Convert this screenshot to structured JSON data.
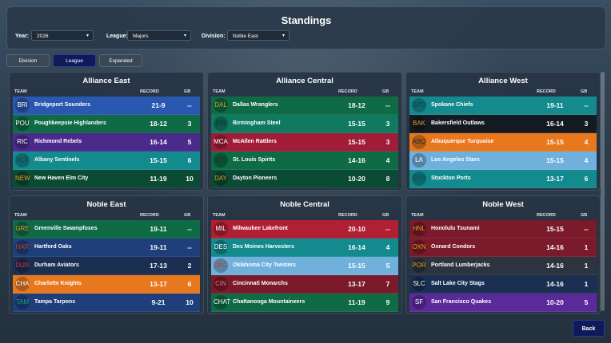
{
  "header": {
    "title": "Standings",
    "filters": [
      {
        "label": "Year:",
        "value": "2026"
      },
      {
        "label": "League:",
        "value": "Majors"
      },
      {
        "label": "Division:",
        "value": "Noble East"
      }
    ]
  },
  "tabs": [
    "Division",
    "League",
    "Expanded"
  ],
  "columns": {
    "team": "TEAM",
    "record": "RECORD",
    "gb": "GB"
  },
  "divisions": [
    {
      "name": "Alliance East",
      "teams": [
        {
          "abbr": "BRI",
          "name": "Bridgeport Sounders",
          "record": "21-9",
          "gb": "--",
          "color": "#2a57b0",
          "accent": "#ffffff"
        },
        {
          "abbr": "POU",
          "name": "Poughkeepsie Highlanders",
          "record": "18-12",
          "gb": "3",
          "color": "#0f6a46",
          "accent": "#ffffff"
        },
        {
          "abbr": "RIC",
          "name": "Richmond Rebels",
          "record": "16-14",
          "gb": "5",
          "color": "#4b2a8c",
          "accent": "#ffffff"
        },
        {
          "abbr": "ALB",
          "name": "Albany Sentinels",
          "record": "15-15",
          "gb": "6",
          "color": "#138a8e",
          "accent": "#0d4b4d"
        },
        {
          "abbr": "NEW",
          "name": "New Haven Elm City",
          "record": "11-19",
          "gb": "10",
          "color": "#0b4a34",
          "accent": "#e0a020"
        }
      ]
    },
    {
      "name": "Alliance Central",
      "teams": [
        {
          "abbr": "DAL",
          "name": "Dallas Wranglers",
          "record": "18-12",
          "gb": "--",
          "color": "#0f6a46",
          "accent": "#e0a020"
        },
        {
          "abbr": "BIR",
          "name": "Birmingham Steel",
          "record": "15-15",
          "gb": "3",
          "color": "#0f7a60",
          "accent": "#0b3a2c"
        },
        {
          "abbr": "MCA",
          "name": "McAllen Rattlers",
          "record": "15-15",
          "gb": "3",
          "color": "#a11c36",
          "accent": "#ffffff"
        },
        {
          "abbr": "STL",
          "name": "St. Louis Spirits",
          "record": "14-16",
          "gb": "4",
          "color": "#0f6a46",
          "accent": "#0b3a2c"
        },
        {
          "abbr": "DAY",
          "name": "Dayton Pioneers",
          "record": "10-20",
          "gb": "8",
          "color": "#0b4a34",
          "accent": "#e0a020"
        }
      ]
    },
    {
      "name": "Alliance West",
      "teams": [
        {
          "abbr": "SPO",
          "name": "Spokane Chiefs",
          "record": "19-11",
          "gb": "--",
          "color": "#138a8e",
          "accent": "#0d4b4d"
        },
        {
          "abbr": "BAK",
          "name": "Bakersfield Outlaws",
          "record": "16-14",
          "gb": "3",
          "color": "#151a22",
          "accent": "#e0a020"
        },
        {
          "abbr": "ABQ",
          "name": "Albuquerque Turquoise",
          "record": "15-15",
          "gb": "4",
          "color": "#e8781e",
          "accent": "#2a2a2a"
        },
        {
          "abbr": "LA",
          "name": "Los Angeles Stars",
          "record": "15-15",
          "gb": "4",
          "color": "#6fb0dc",
          "accent": "#ffffff"
        },
        {
          "abbr": "STO",
          "name": "Stockton Ports",
          "record": "13-17",
          "gb": "6",
          "color": "#138a8e",
          "accent": "#0d4b4d"
        }
      ]
    },
    {
      "name": "Noble East",
      "teams": [
        {
          "abbr": "GRE",
          "name": "Greenville Swampfoxes",
          "record": "19-11",
          "gb": "--",
          "color": "#0f6a46",
          "accent": "#e0a020"
        },
        {
          "abbr": "HAR",
          "name": "Hartford Oaks",
          "record": "19-11",
          "gb": "--",
          "color": "#1e3f7a",
          "accent": "#c23a3a"
        },
        {
          "abbr": "DUR",
          "name": "Durham Aviators",
          "record": "17-13",
          "gb": "2",
          "color": "#1a2f52",
          "accent": "#d23a3a"
        },
        {
          "abbr": "CHA",
          "name": "Charlotte Knights",
          "record": "13-17",
          "gb": "6",
          "color": "#e8781e",
          "accent": "#ffffff"
        },
        {
          "abbr": "TAM",
          "name": "Tampa Tarpons",
          "record": "9-21",
          "gb": "10",
          "color": "#1e3f7a",
          "accent": "#18a08a"
        }
      ]
    },
    {
      "name": "Noble Central",
      "teams": [
        {
          "abbr": "MIL",
          "name": "Milwaukee Lakefront",
          "record": "20-10",
          "gb": "--",
          "color": "#b01f33",
          "accent": "#ffffff"
        },
        {
          "abbr": "DES",
          "name": "Des Moines Harvesters",
          "record": "16-14",
          "gb": "4",
          "color": "#138a8e",
          "accent": "#ffffff"
        },
        {
          "abbr": "OKC",
          "name": "Oklahoma City Twisters",
          "record": "15-15",
          "gb": "5",
          "color": "#6fb0dc",
          "accent": "#d23a3a"
        },
        {
          "abbr": "CIN",
          "name": "Cincinnati Monarchs",
          "record": "13-17",
          "gb": "7",
          "color": "#7a1a2a",
          "accent": "#d08080"
        },
        {
          "abbr": "CHAT",
          "name": "Chattanooga Mountaineers",
          "record": "11-19",
          "gb": "9",
          "color": "#0f6a46",
          "accent": "#ffffff"
        }
      ]
    },
    {
      "name": "Noble West",
      "teams": [
        {
          "abbr": "HNL",
          "name": "Honolulu Tsunami",
          "record": "15-15",
          "gb": "--",
          "color": "#7a1a2a",
          "accent": "#e0a020"
        },
        {
          "abbr": "OXN",
          "name": "Oxnard Condors",
          "record": "14-16",
          "gb": "1",
          "color": "#7a1a2a",
          "accent": "#e0a020"
        },
        {
          "abbr": "POR",
          "name": "Portland Lumberjacks",
          "record": "14-16",
          "gb": "1",
          "color": "#2c3440",
          "accent": "#e0a020"
        },
        {
          "abbr": "SLC",
          "name": "Salt Lake City Stags",
          "record": "14-16",
          "gb": "1",
          "color": "#1a2f52",
          "accent": "#ffffff"
        },
        {
          "abbr": "SF",
          "name": "San Francisco Quakes",
          "record": "10-20",
          "gb": "5",
          "color": "#5b2a9a",
          "accent": "#ffffff"
        }
      ]
    }
  ],
  "back_label": "Back"
}
